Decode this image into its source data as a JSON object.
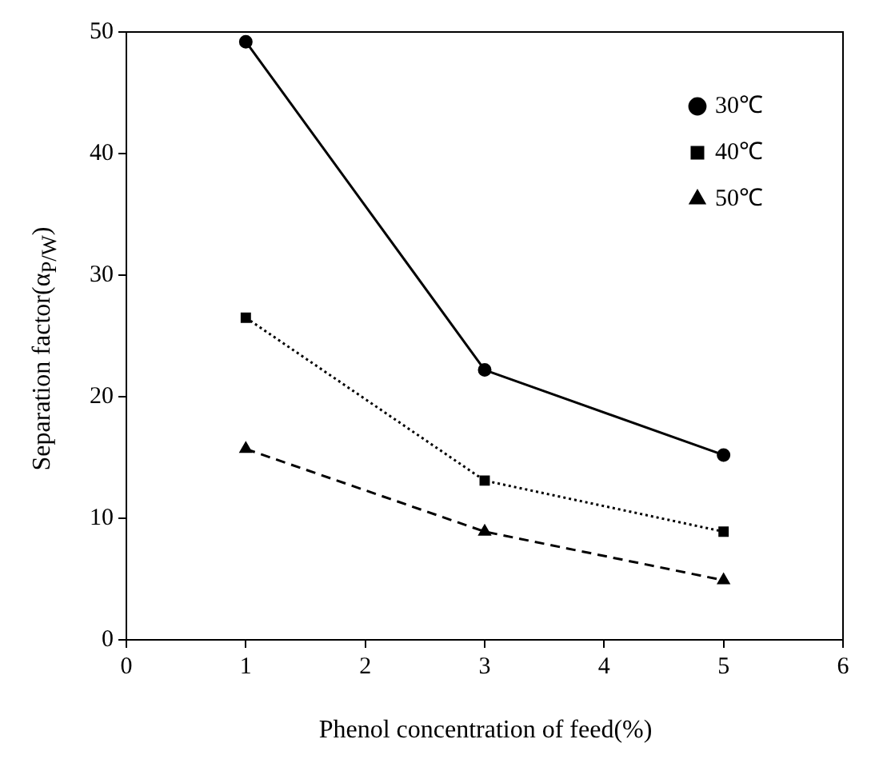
{
  "chart_data": {
    "type": "line",
    "xlabel": "Phenol concentration of feed(%)",
    "ylabel": "Separation factor(α$_{P/W}$)",
    "x": [
      1,
      3,
      5
    ],
    "series": [
      {
        "name": "30℃",
        "color": "#000000",
        "values": [
          49.2,
          22.2,
          15.2
        ],
        "marker": "circle",
        "line_style": "solid"
      },
      {
        "name": "40℃",
        "color": "#000000",
        "values": [
          26.5,
          13.1,
          8.9
        ],
        "marker": "square",
        "line_style": "dotted"
      },
      {
        "name": "50℃",
        "color": "#000000",
        "values": [
          15.7,
          8.9,
          4.9
        ],
        "marker": "triangle",
        "line_style": "dashed"
      }
    ],
    "xlim": [
      0,
      6
    ],
    "xticks": [
      0,
      1,
      2,
      3,
      4,
      5,
      6
    ],
    "ylim": [
      0,
      50
    ],
    "yticks": [
      0,
      10,
      20,
      30,
      40,
      50
    ],
    "grid": false,
    "legend": "top right"
  }
}
